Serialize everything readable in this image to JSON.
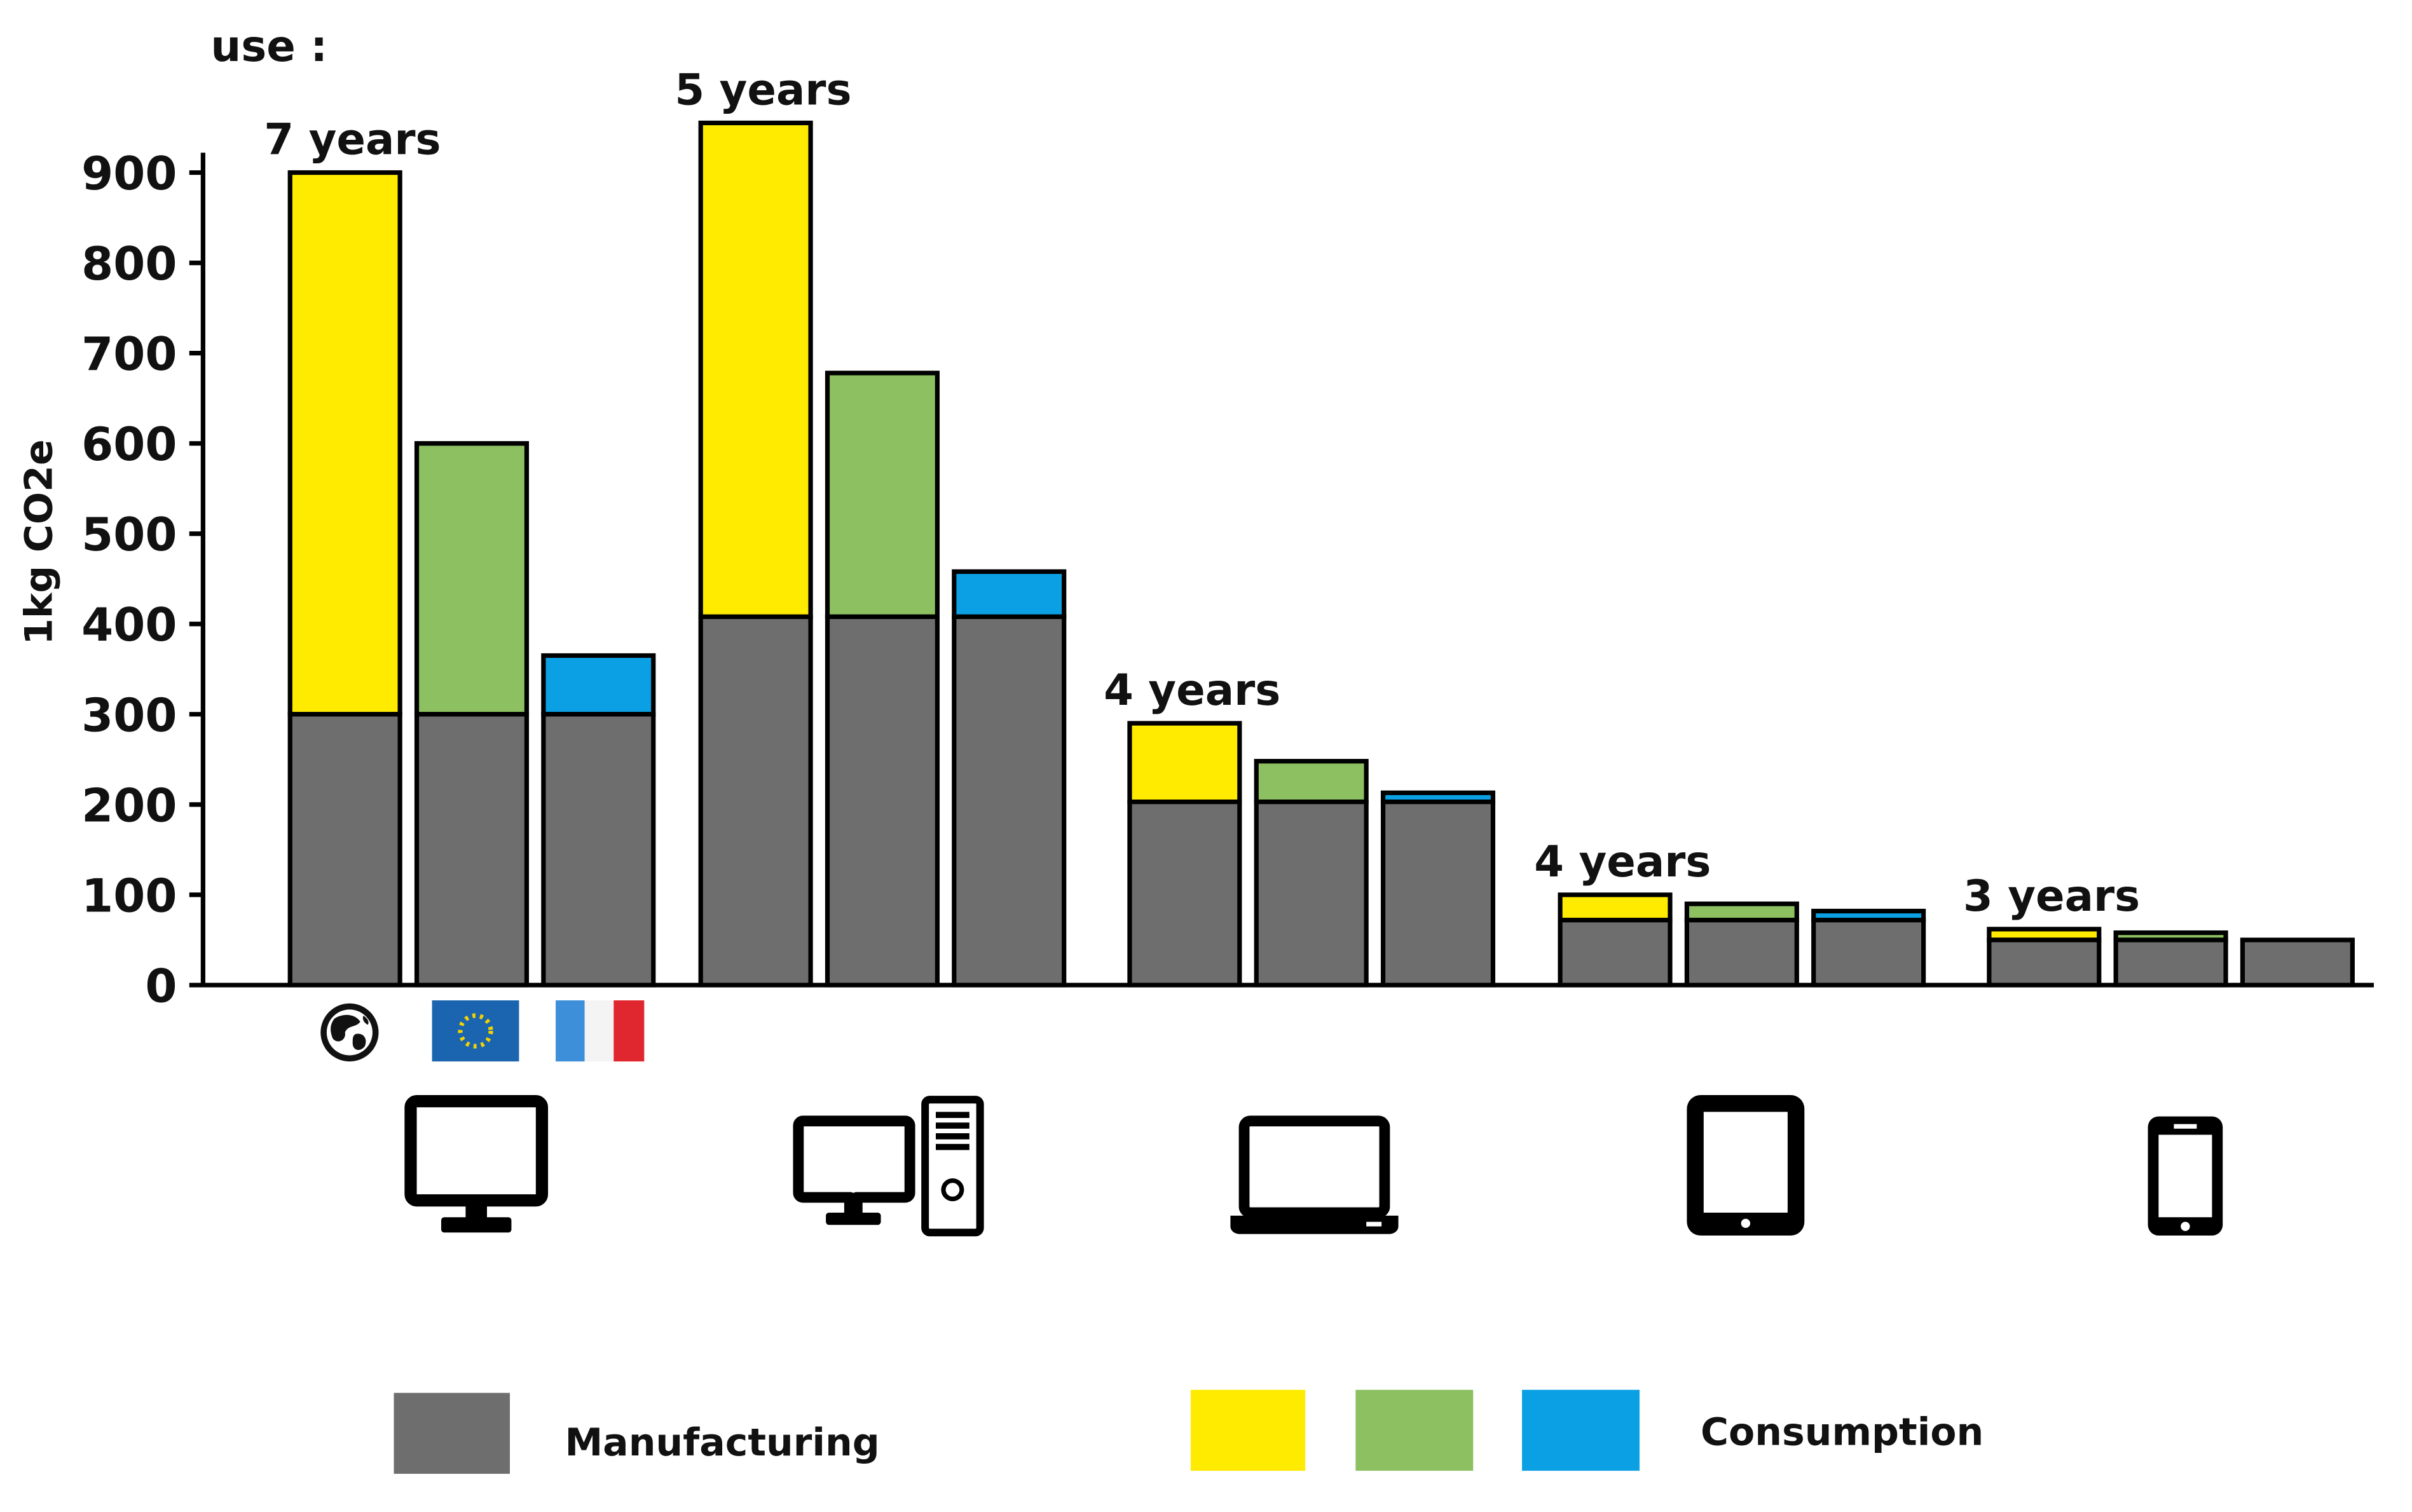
{
  "chart_data": {
    "type": "bar",
    "stacked": true,
    "title": "",
    "header_text": "use :",
    "ylabel": "1kg CO2e",
    "xlabel": "",
    "ylim": [
      0,
      900
    ],
    "yticks": [
      "0",
      "100",
      "200",
      "300",
      "400",
      "500",
      "600",
      "700",
      "800",
      "900"
    ],
    "grid": false,
    "groups": [
      {
        "device": "monitor",
        "device_icon": "monitor-icon",
        "lifetime_label": "7 years",
        "bars": [
          {
            "region": "world",
            "manufacturing": 300,
            "consumption": 600,
            "consumption_color": "#FFEB00"
          },
          {
            "region": "europe",
            "manufacturing": 300,
            "consumption": 300,
            "consumption_color": "#8CC060"
          },
          {
            "region": "france",
            "manufacturing": 300,
            "consumption": 65,
            "consumption_color": "#0AA0E3"
          }
        ]
      },
      {
        "device": "desktop-computer",
        "device_icon": "desktop-computer-icon",
        "lifetime_label": "5 years",
        "bars": [
          {
            "region": "world",
            "manufacturing": 408,
            "consumption": 547,
            "consumption_color": "#FFEB00"
          },
          {
            "region": "europe",
            "manufacturing": 408,
            "consumption": 270,
            "consumption_color": "#8CC060"
          },
          {
            "region": "france",
            "manufacturing": 408,
            "consumption": 50,
            "consumption_color": "#0AA0E3"
          }
        ]
      },
      {
        "device": "laptop",
        "device_icon": "laptop-icon",
        "lifetime_label": "4 years",
        "bars": [
          {
            "region": "world",
            "manufacturing": 203,
            "consumption": 87,
            "consumption_color": "#FFEB00"
          },
          {
            "region": "europe",
            "manufacturing": 203,
            "consumption": 45,
            "consumption_color": "#8CC060"
          },
          {
            "region": "france",
            "manufacturing": 203,
            "consumption": 10,
            "consumption_color": "#0AA0E3"
          }
        ]
      },
      {
        "device": "tablet",
        "device_icon": "tablet-icon",
        "lifetime_label": "4 years",
        "bars": [
          {
            "region": "world",
            "manufacturing": 72,
            "consumption": 28,
            "consumption_color": "#FFEB00"
          },
          {
            "region": "europe",
            "manufacturing": 72,
            "consumption": 18,
            "consumption_color": "#8CC060"
          },
          {
            "region": "france",
            "manufacturing": 72,
            "consumption": 10,
            "consumption_color": "#0AA0E3"
          }
        ]
      },
      {
        "device": "smartphone",
        "device_icon": "smartphone-icon",
        "lifetime_label": "3 years",
        "bars": [
          {
            "region": "world",
            "manufacturing": 50,
            "consumption": 12,
            "consumption_color": "#FFEB00"
          },
          {
            "region": "europe",
            "manufacturing": 50,
            "consumption": 8,
            "consumption_color": "#8CC060"
          },
          {
            "region": "france",
            "manufacturing": 50,
            "consumption": 0,
            "consumption_color": "#0AA0E3"
          }
        ]
      }
    ],
    "region_icons": [
      {
        "region": "world",
        "icon": "globe-icon"
      },
      {
        "region": "europe",
        "icon": "eu-flag-icon"
      },
      {
        "region": "france",
        "icon": "france-flag-icon"
      }
    ],
    "legend": {
      "manufacturing_label": "Manufacturing",
      "consumption_label": "Consumption"
    },
    "colors": {
      "manufacturing": "#6E6E6E",
      "world": "#FFEB00",
      "europe": "#8CC060",
      "france": "#0AA0E3",
      "outline": "#000000"
    }
  }
}
